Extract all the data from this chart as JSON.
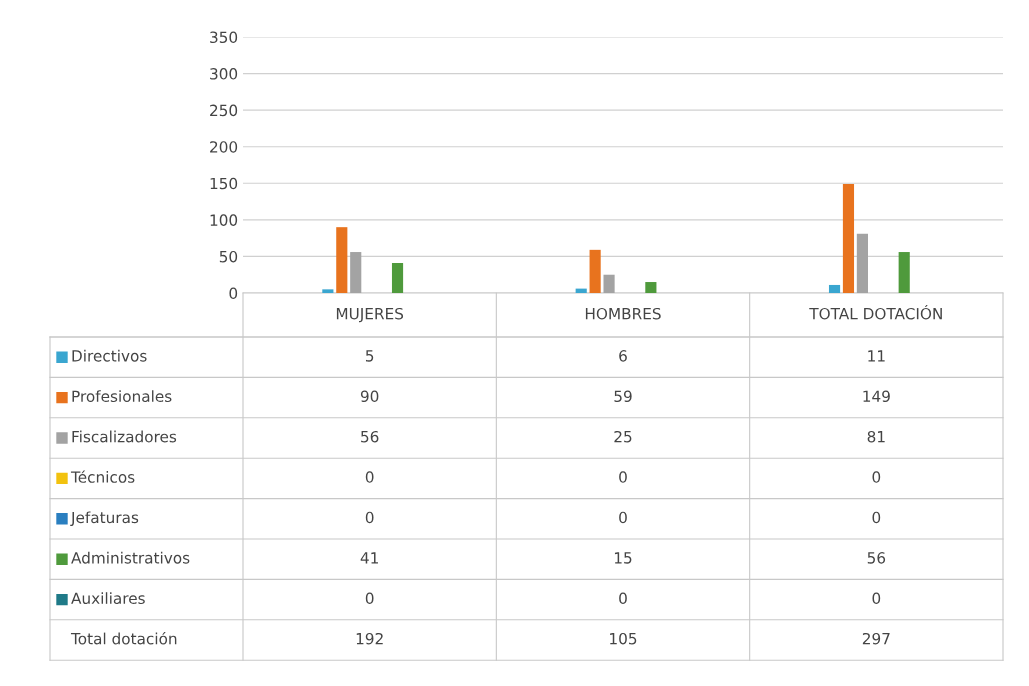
{
  "chart_data": {
    "type": "bar",
    "categories": [
      "MUJERES",
      "HOMBRES",
      "TOTAL DOTACIÓN"
    ],
    "series": [
      {
        "name": "Directivos",
        "color": "#3aa6d0",
        "values": [
          5,
          6,
          11
        ]
      },
      {
        "name": "Profesionales",
        "color": "#e8731e",
        "values": [
          90,
          59,
          149
        ]
      },
      {
        "name": "Fiscalizadores",
        "color": "#a3a3a3",
        "values": [
          56,
          25,
          81
        ]
      },
      {
        "name": "Técnicos",
        "color": "#f2c20f",
        "values": [
          0,
          0,
          0
        ]
      },
      {
        "name": "Jefaturas",
        "color": "#2a7fc0",
        "values": [
          0,
          0,
          0
        ]
      },
      {
        "name": "Administrativos",
        "color": "#4f9a3c",
        "values": [
          41,
          15,
          56
        ]
      },
      {
        "name": "Auxiliares",
        "color": "#1f7a88",
        "values": [
          0,
          0,
          0
        ]
      }
    ],
    "ylim": [
      0,
      350
    ],
    "yticks": [
      0,
      50,
      100,
      150,
      200,
      250,
      300,
      350
    ],
    "grid": "y",
    "data_labels": true,
    "legend": "bottom",
    "annotations": [
      "Total dotación",
      "192",
      "105",
      "297"
    ]
  }
}
